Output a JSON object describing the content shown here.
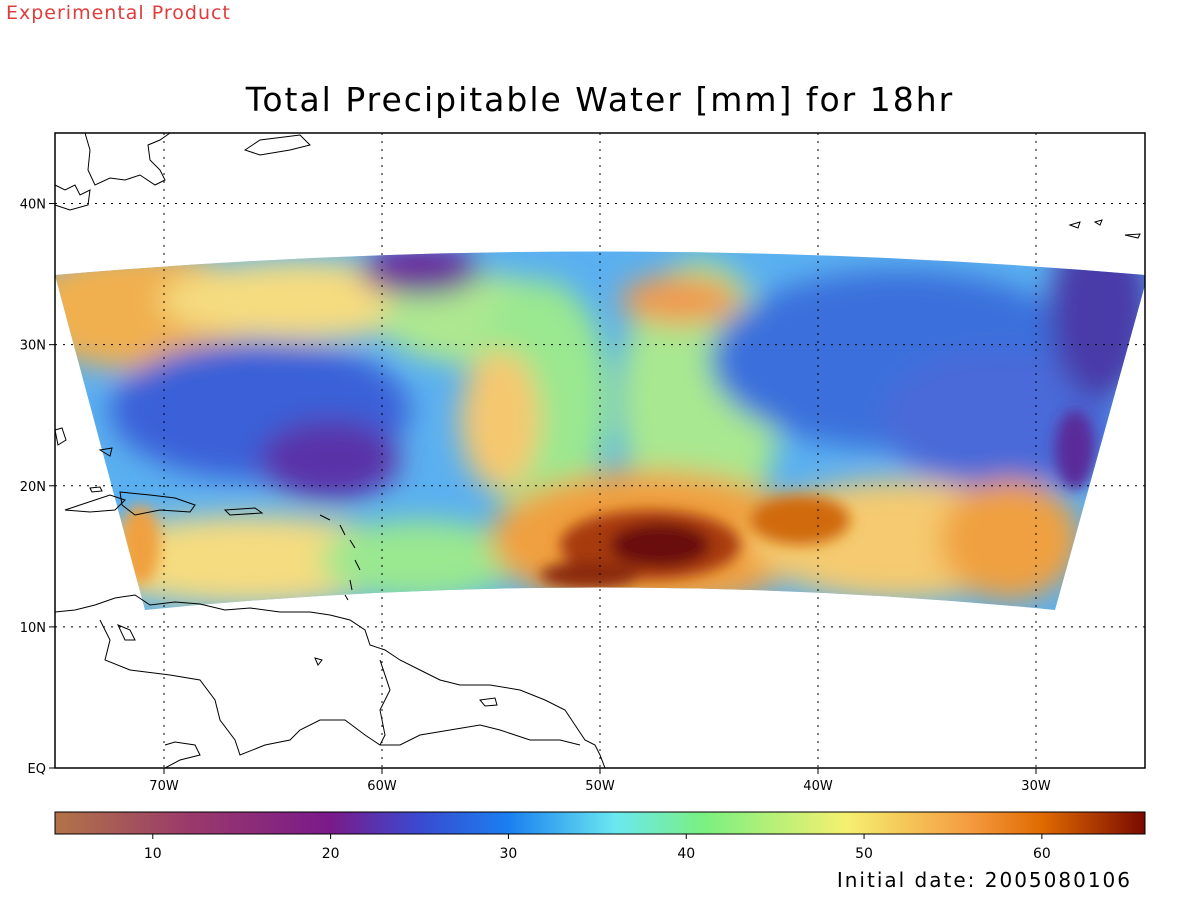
{
  "header": {
    "tag": "Experimental Product",
    "title": "Total Precipitable Water [mm] for 18hr"
  },
  "footer": {
    "initial_date": "Initial date: 2005080106"
  },
  "map": {
    "lon_range": [
      -75,
      -25
    ],
    "lat_range": [
      0,
      45
    ],
    "lon_ticks": [
      {
        "value": -70,
        "label": "70W"
      },
      {
        "value": -60,
        "label": "60W"
      },
      {
        "value": -50,
        "label": "50W"
      },
      {
        "value": -40,
        "label": "40W"
      },
      {
        "value": -30,
        "label": "30W"
      }
    ],
    "lat_ticks": [
      {
        "value": 0,
        "label": "EQ"
      },
      {
        "value": 10,
        "label": "10N"
      },
      {
        "value": 20,
        "label": "20N"
      },
      {
        "value": 30,
        "label": "30N"
      },
      {
        "value": 40,
        "label": "40N"
      }
    ],
    "grid": true
  },
  "colorbar": {
    "range": [
      4.5,
      65.8
    ],
    "ticks": [
      10,
      20,
      30,
      40,
      50,
      60
    ],
    "stops": [
      {
        "value": 5,
        "color": "#b0704a"
      },
      {
        "value": 12,
        "color": "#9a3a6a"
      },
      {
        "value": 20,
        "color": "#7a1a8a"
      },
      {
        "value": 25,
        "color": "#3a4ad0"
      },
      {
        "value": 30,
        "color": "#1a7ff0"
      },
      {
        "value": 36,
        "color": "#6ae8f0"
      },
      {
        "value": 41,
        "color": "#7af080"
      },
      {
        "value": 49,
        "color": "#f5f070"
      },
      {
        "value": 56,
        "color": "#f59a40"
      },
      {
        "value": 60,
        "color": "#e06a00"
      },
      {
        "value": 66,
        "color": "#7a0a00"
      }
    ]
  },
  "colors": {
    "deep_blue": "#3a60d8",
    "blue": "#4a9af2",
    "cyan": "#7ad8f0",
    "green": "#9ae890",
    "yellow": "#f5ea80",
    "orange": "#f0a040",
    "dark_orange": "#c85a00",
    "maroon": "#6a0a0a",
    "purple": "#6a2a9a"
  }
}
